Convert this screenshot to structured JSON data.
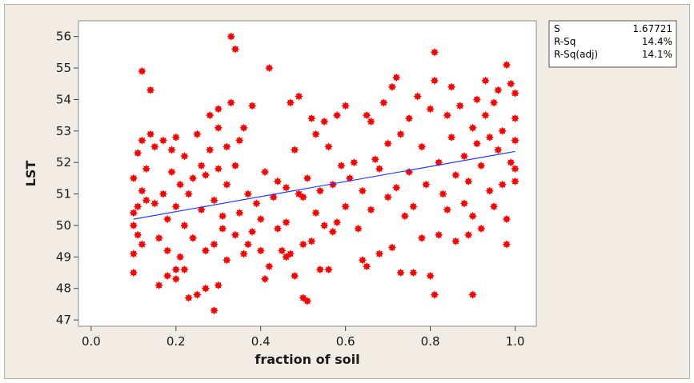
{
  "chart_data": {
    "type": "scatter",
    "title": "",
    "xlabel": "fraction of soil",
    "ylabel": "LST",
    "xlim": [
      -0.03,
      1.05
    ],
    "ylim": [
      46.8,
      56.5
    ],
    "xticks": [
      "0.0",
      "0.2",
      "0.4",
      "0.6",
      "0.8",
      "1.0"
    ],
    "yticks": [
      "47",
      "48",
      "49",
      "50",
      "51",
      "52",
      "53",
      "54",
      "55",
      "56"
    ],
    "grid": false,
    "marker_color": "#ff0000",
    "line_color": "#1f3cff",
    "fit_line": {
      "x": [
        0.1,
        1.0
      ],
      "y": [
        50.2,
        52.35
      ]
    },
    "stats": [
      {
        "label": "S",
        "value": "1.67721"
      },
      {
        "label": "R-Sq",
        "value": "14.4%"
      },
      {
        "label": "R-Sq(adj)",
        "value": "14.1%"
      }
    ],
    "points": [
      [
        0.1,
        48.5
      ],
      [
        0.1,
        49.1
      ],
      [
        0.1,
        50.0
      ],
      [
        0.1,
        50.4
      ],
      [
        0.1,
        51.5
      ],
      [
        0.11,
        49.7
      ],
      [
        0.11,
        50.6
      ],
      [
        0.11,
        52.3
      ],
      [
        0.12,
        52.7
      ],
      [
        0.12,
        51.1
      ],
      [
        0.12,
        49.4
      ],
      [
        0.12,
        54.9
      ],
      [
        0.13,
        50.8
      ],
      [
        0.13,
        51.8
      ],
      [
        0.14,
        52.9
      ],
      [
        0.14,
        54.3
      ],
      [
        0.15,
        50.7
      ],
      [
        0.15,
        52.5
      ],
      [
        0.16,
        48.1
      ],
      [
        0.16,
        49.6
      ],
      [
        0.17,
        51.0
      ],
      [
        0.17,
        52.7
      ],
      [
        0.18,
        48.4
      ],
      [
        0.18,
        49.2
      ],
      [
        0.18,
        50.2
      ],
      [
        0.19,
        51.7
      ],
      [
        0.19,
        52.4
      ],
      [
        0.2,
        48.6
      ],
      [
        0.2,
        50.6
      ],
      [
        0.2,
        52.8
      ],
      [
        0.2,
        48.3
      ],
      [
        0.21,
        49.0
      ],
      [
        0.21,
        51.3
      ],
      [
        0.22,
        50.0
      ],
      [
        0.22,
        52.2
      ],
      [
        0.22,
        48.6
      ],
      [
        0.23,
        47.7
      ],
      [
        0.23,
        51.0
      ],
      [
        0.24,
        49.6
      ],
      [
        0.24,
        51.5
      ],
      [
        0.25,
        47.8
      ],
      [
        0.25,
        52.9
      ],
      [
        0.26,
        50.5
      ],
      [
        0.26,
        51.9
      ],
      [
        0.27,
        48.0
      ],
      [
        0.27,
        49.2
      ],
      [
        0.27,
        51.6
      ],
      [
        0.28,
        52.4
      ],
      [
        0.28,
        53.5
      ],
      [
        0.29,
        47.3
      ],
      [
        0.29,
        49.4
      ],
      [
        0.29,
        50.8
      ],
      [
        0.3,
        48.1
      ],
      [
        0.3,
        51.8
      ],
      [
        0.3,
        53.1
      ],
      [
        0.3,
        53.7
      ],
      [
        0.31,
        49.9
      ],
      [
        0.31,
        50.3
      ],
      [
        0.32,
        48.9
      ],
      [
        0.32,
        51.3
      ],
      [
        0.32,
        52.5
      ],
      [
        0.33,
        53.9
      ],
      [
        0.33,
        56.0
      ],
      [
        0.34,
        55.6
      ],
      [
        0.34,
        49.7
      ],
      [
        0.34,
        51.9
      ],
      [
        0.35,
        50.4
      ],
      [
        0.35,
        52.7
      ],
      [
        0.36,
        49.1
      ],
      [
        0.36,
        53.1
      ],
      [
        0.37,
        49.4
      ],
      [
        0.37,
        51.0
      ],
      [
        0.38,
        49.8
      ],
      [
        0.38,
        53.8
      ],
      [
        0.39,
        50.7
      ],
      [
        0.4,
        49.2
      ],
      [
        0.4,
        50.2
      ],
      [
        0.41,
        48.3
      ],
      [
        0.41,
        51.7
      ],
      [
        0.42,
        55.0
      ],
      [
        0.42,
        48.7
      ],
      [
        0.43,
        50.9
      ],
      [
        0.44,
        49.9
      ],
      [
        0.44,
        51.4
      ],
      [
        0.45,
        49.2
      ],
      [
        0.46,
        49.0
      ],
      [
        0.46,
        50.1
      ],
      [
        0.46,
        51.2
      ],
      [
        0.47,
        49.1
      ],
      [
        0.47,
        53.9
      ],
      [
        0.48,
        48.4
      ],
      [
        0.48,
        52.4
      ],
      [
        0.49,
        51.0
      ],
      [
        0.49,
        54.1
      ],
      [
        0.5,
        47.7
      ],
      [
        0.5,
        49.4
      ],
      [
        0.5,
        50.9
      ],
      [
        0.51,
        47.6
      ],
      [
        0.51,
        51.5
      ],
      [
        0.52,
        53.4
      ],
      [
        0.52,
        49.5
      ],
      [
        0.53,
        50.4
      ],
      [
        0.53,
        52.9
      ],
      [
        0.54,
        48.6
      ],
      [
        0.54,
        51.1
      ],
      [
        0.55,
        53.3
      ],
      [
        0.55,
        50.0
      ],
      [
        0.56,
        52.5
      ],
      [
        0.56,
        48.6
      ],
      [
        0.57,
        49.8
      ],
      [
        0.57,
        51.3
      ],
      [
        0.58,
        53.5
      ],
      [
        0.58,
        50.1
      ],
      [
        0.59,
        51.9
      ],
      [
        0.6,
        53.8
      ],
      [
        0.6,
        50.6
      ],
      [
        0.61,
        51.5
      ],
      [
        0.62,
        52.0
      ],
      [
        0.63,
        49.9
      ],
      [
        0.64,
        48.9
      ],
      [
        0.64,
        51.1
      ],
      [
        0.65,
        53.5
      ],
      [
        0.65,
        48.7
      ],
      [
        0.66,
        53.3
      ],
      [
        0.66,
        50.5
      ],
      [
        0.67,
        52.1
      ],
      [
        0.68,
        49.1
      ],
      [
        0.68,
        51.8
      ],
      [
        0.69,
        53.9
      ],
      [
        0.7,
        50.9
      ],
      [
        0.7,
        52.6
      ],
      [
        0.71,
        54.4
      ],
      [
        0.71,
        49.3
      ],
      [
        0.72,
        54.7
      ],
      [
        0.72,
        51.2
      ],
      [
        0.73,
        48.5
      ],
      [
        0.73,
        52.9
      ],
      [
        0.74,
        50.3
      ],
      [
        0.75,
        53.4
      ],
      [
        0.75,
        51.7
      ],
      [
        0.76,
        48.5
      ],
      [
        0.76,
        50.6
      ],
      [
        0.77,
        54.1
      ],
      [
        0.78,
        52.5
      ],
      [
        0.78,
        49.6
      ],
      [
        0.79,
        51.3
      ],
      [
        0.8,
        48.4
      ],
      [
        0.8,
        53.7
      ],
      [
        0.81,
        47.8
      ],
      [
        0.81,
        55.5
      ],
      [
        0.81,
        54.6
      ],
      [
        0.82,
        52.0
      ],
      [
        0.82,
        49.7
      ],
      [
        0.83,
        51.0
      ],
      [
        0.84,
        53.5
      ],
      [
        0.84,
        50.5
      ],
      [
        0.85,
        52.8
      ],
      [
        0.85,
        54.4
      ],
      [
        0.86,
        49.5
      ],
      [
        0.86,
        51.6
      ],
      [
        0.87,
        53.8
      ],
      [
        0.88,
        50.7
      ],
      [
        0.88,
        52.2
      ],
      [
        0.89,
        49.7
      ],
      [
        0.89,
        51.4
      ],
      [
        0.9,
        47.8
      ],
      [
        0.9,
        53.1
      ],
      [
        0.9,
        50.3
      ],
      [
        0.91,
        52.6
      ],
      [
        0.91,
        54.0
      ],
      [
        0.92,
        51.9
      ],
      [
        0.92,
        49.9
      ],
      [
        0.93,
        53.5
      ],
      [
        0.93,
        54.6
      ],
      [
        0.94,
        52.8
      ],
      [
        0.94,
        51.1
      ],
      [
        0.95,
        53.9
      ],
      [
        0.95,
        50.6
      ],
      [
        0.96,
        52.4
      ],
      [
        0.96,
        54.3
      ],
      [
        0.97,
        51.3
      ],
      [
        0.97,
        53.0
      ],
      [
        0.98,
        55.1
      ],
      [
        0.98,
        50.2
      ],
      [
        0.98,
        49.4
      ],
      [
        0.99,
        52.0
      ],
      [
        0.99,
        54.5
      ],
      [
        1.0,
        53.4
      ],
      [
        1.0,
        54.2
      ],
      [
        1.0,
        51.4
      ],
      [
        1.0,
        52.7
      ],
      [
        1.0,
        51.8
      ]
    ]
  }
}
